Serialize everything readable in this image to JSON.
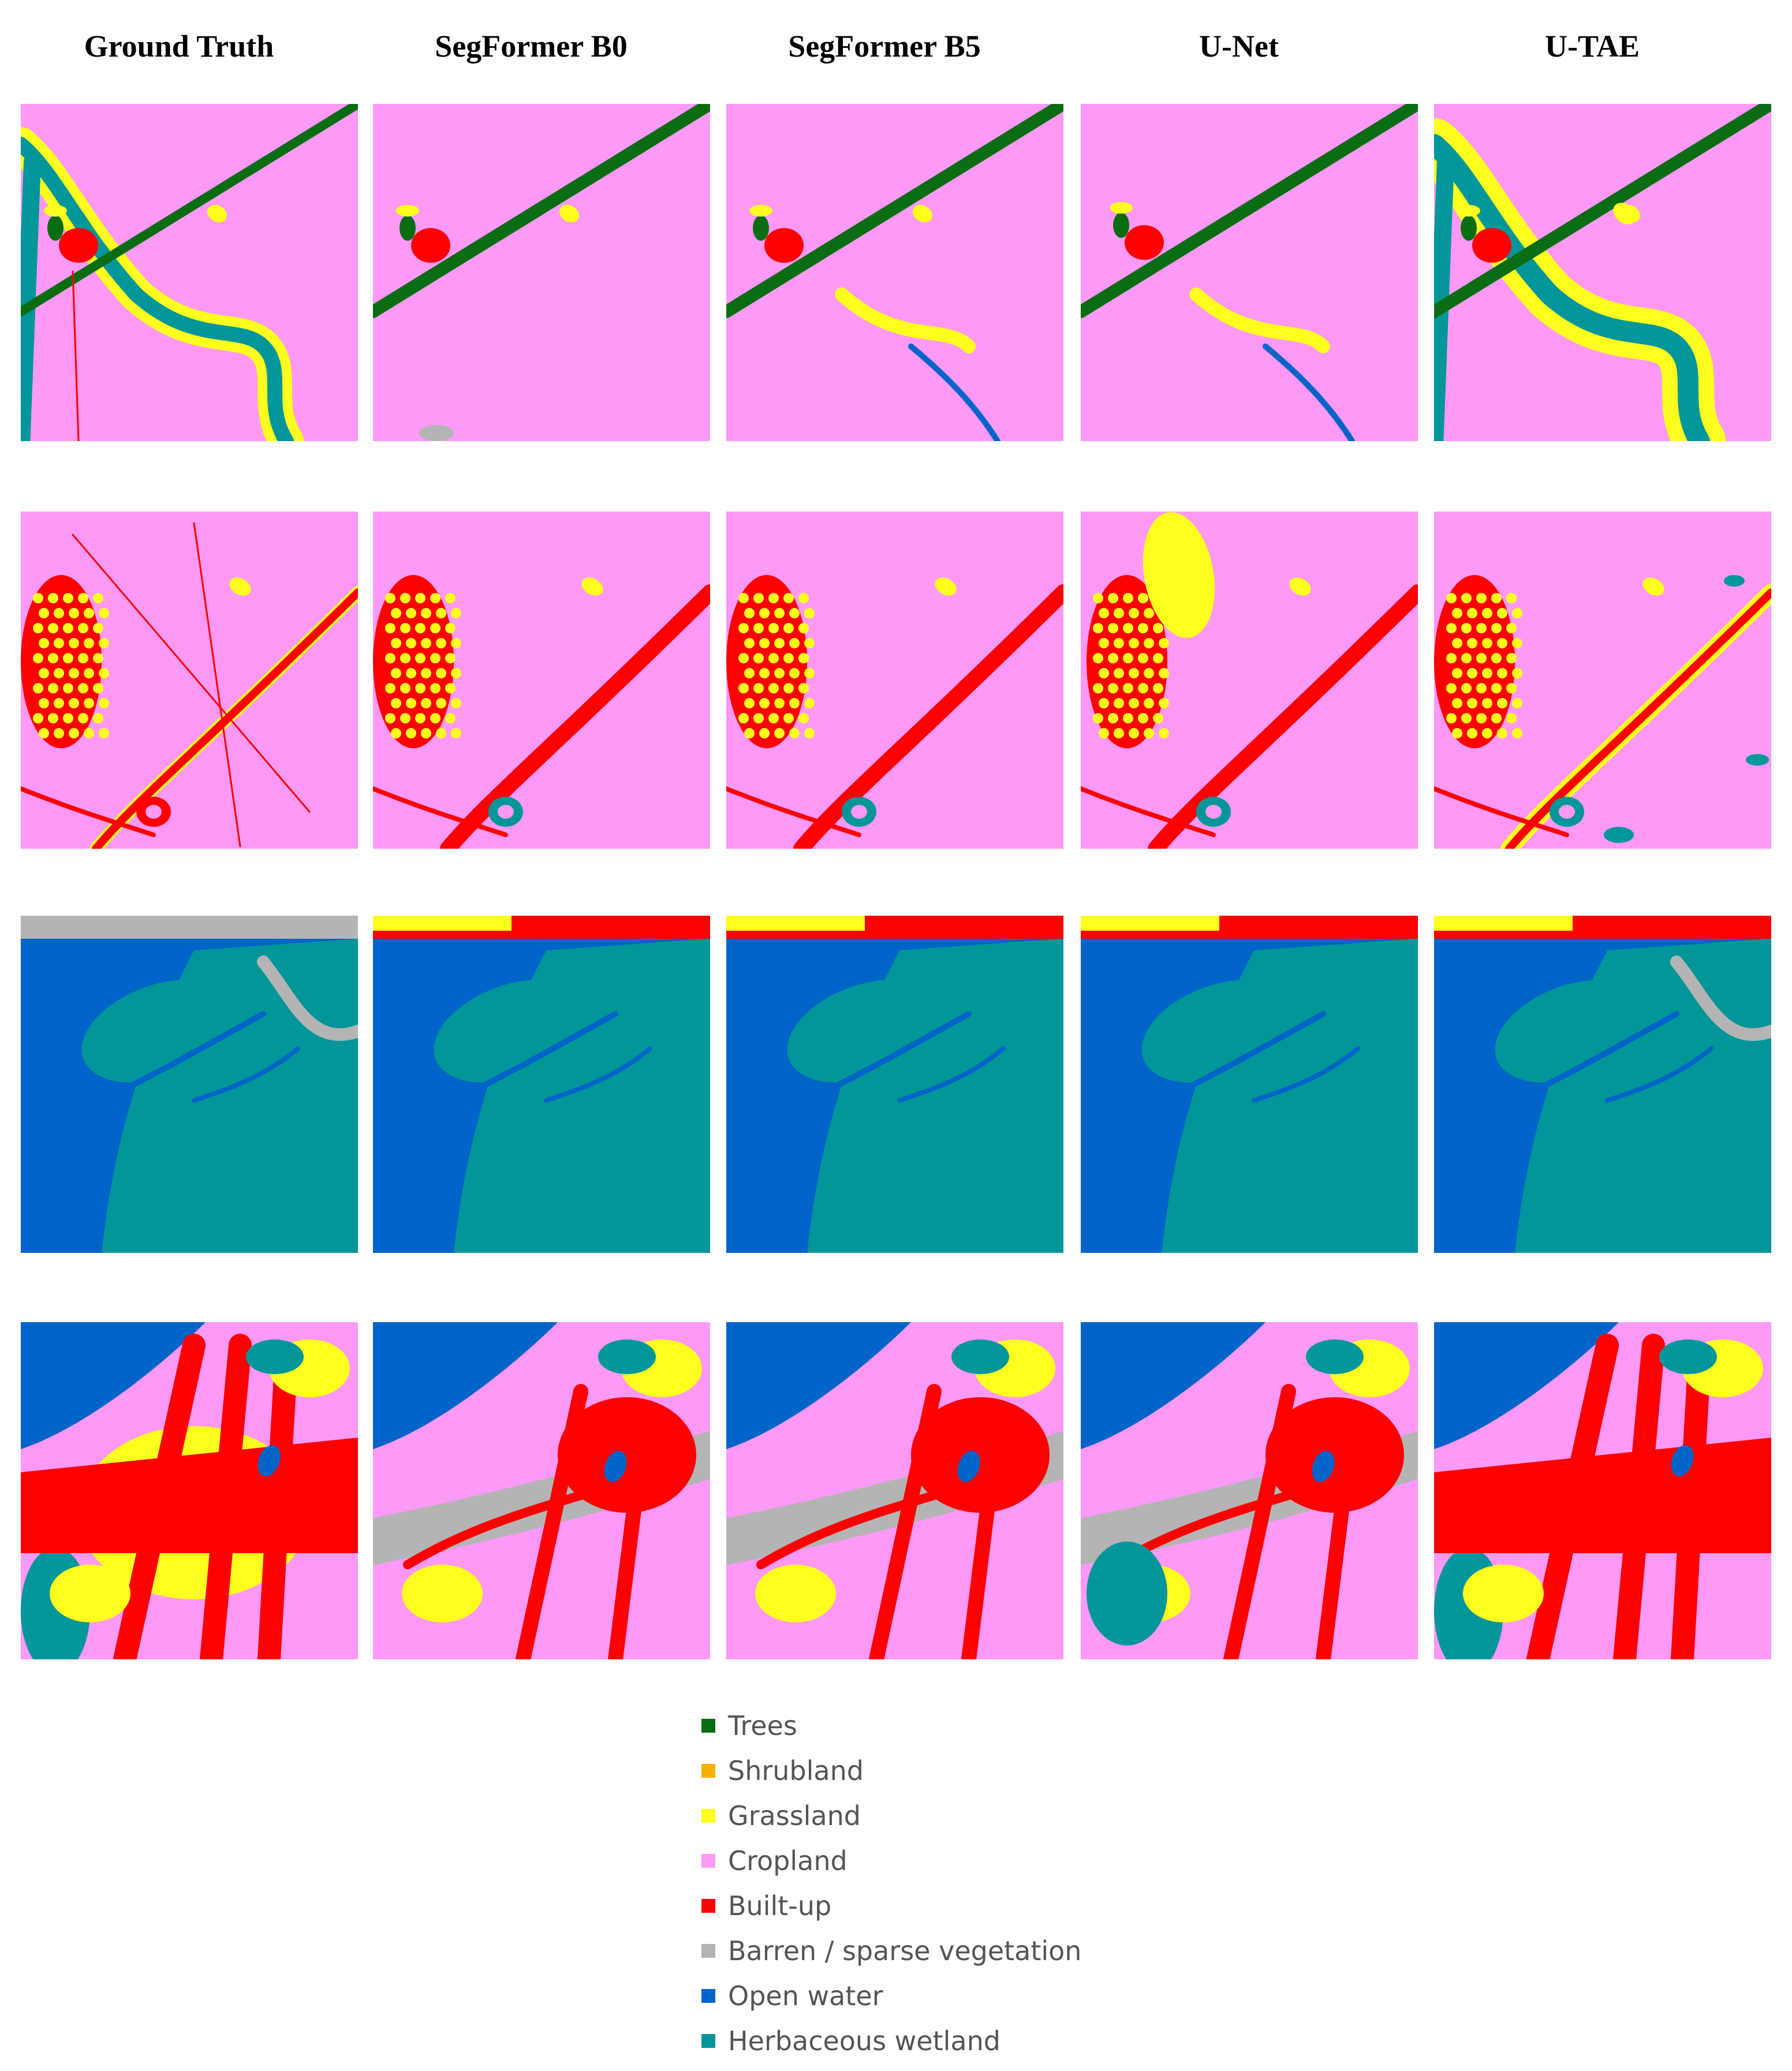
{
  "columns": [
    {
      "label": "Ground Truth"
    },
    {
      "label": "SegFormer B0"
    },
    {
      "label": "SegFormer B5"
    },
    {
      "label": "U-Net"
    },
    {
      "label": "U-TAE"
    }
  ],
  "legend": [
    {
      "label": "Trees",
      "color": "#0a6d13"
    },
    {
      "label": "Shrubland",
      "color": "#f7b000"
    },
    {
      "label": "Grassland",
      "color": "#ffff1e"
    },
    {
      "label": "Cropland",
      "color": "#ff99f7"
    },
    {
      "label": "Built-up",
      "color": "#ff0000"
    },
    {
      "label": "Barren / sparse vegetation",
      "color": "#b4b4b4"
    },
    {
      "label": "Open water",
      "color": "#0064c8"
    },
    {
      "label": "Herbaceous wetland",
      "color": "#00969a"
    }
  ]
}
